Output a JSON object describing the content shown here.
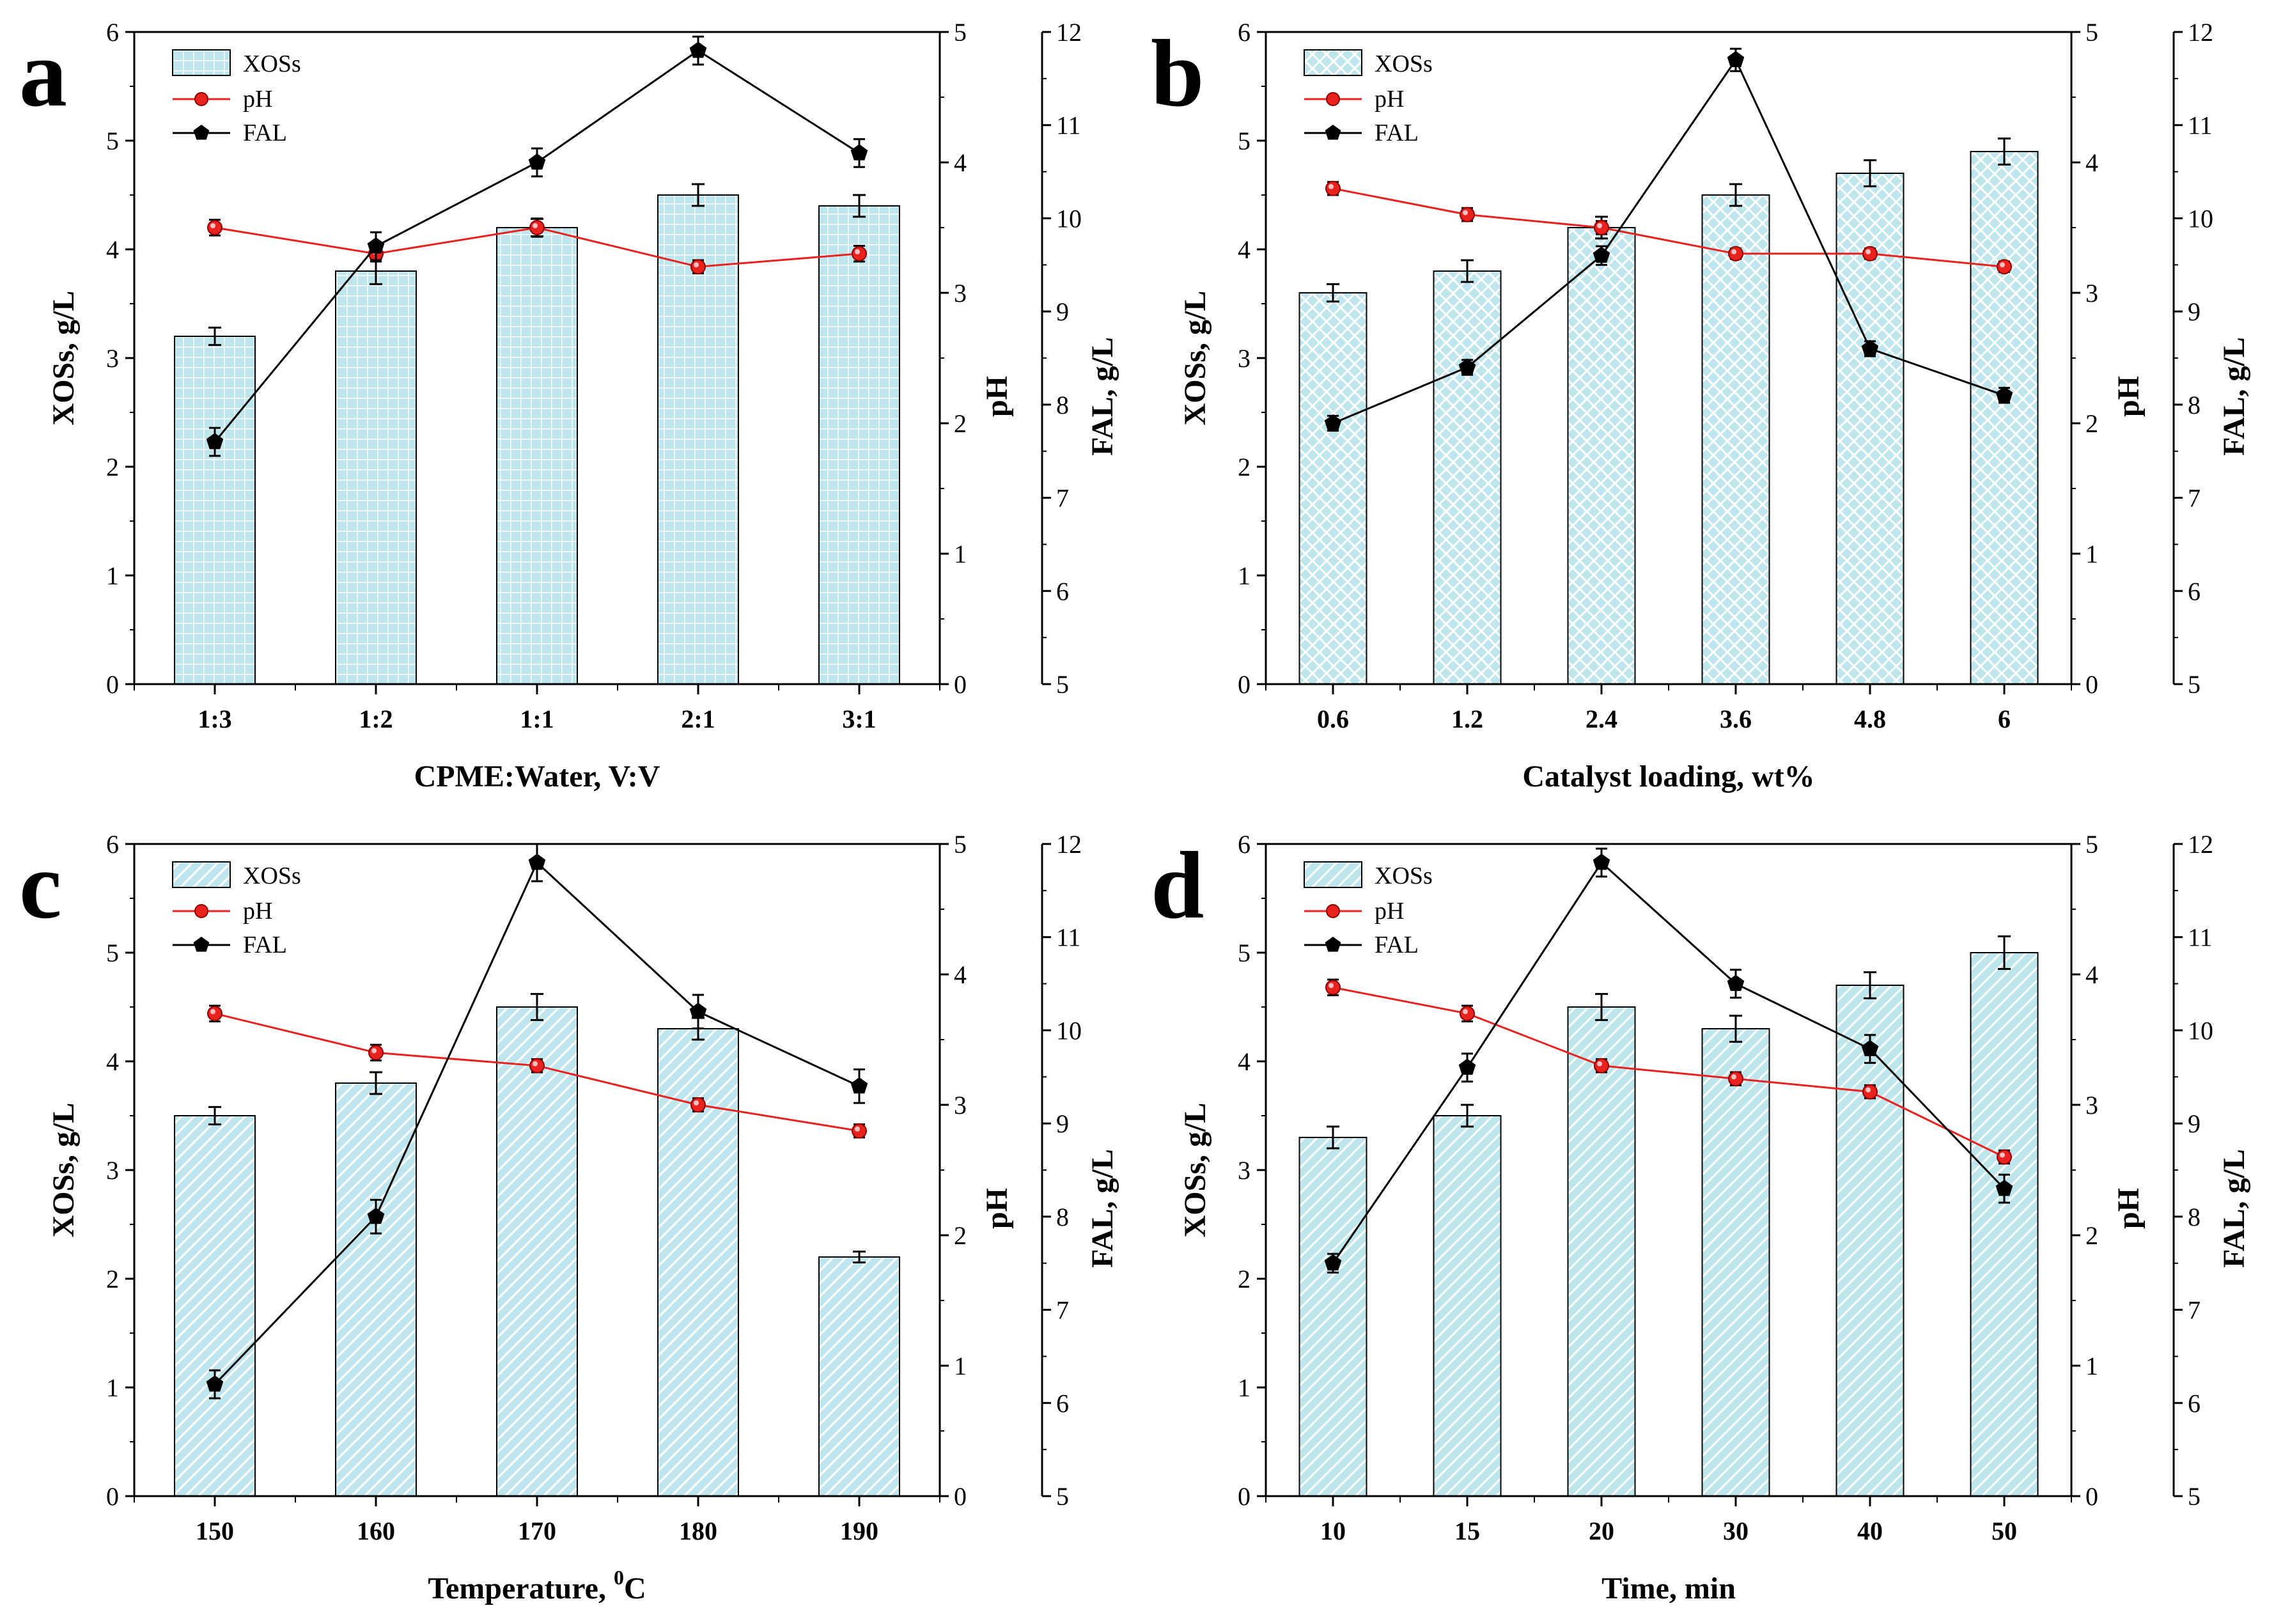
{
  "chart_data": [
    {
      "type": "bar",
      "panel": "a",
      "xlabel": "CPME:Water, V:V",
      "ylabel_left": "XOSs, g/L",
      "ylabel_right1": "pH",
      "ylabel_right2": "FAL, g/L",
      "categories": [
        "1:3",
        "1:2",
        "1:1",
        "2:1",
        "3:1"
      ],
      "ylim_left": [
        0,
        6
      ],
      "ylim_ph": [
        0,
        5
      ],
      "ylim_fal": [
        5,
        12
      ],
      "pattern": "grid",
      "series": [
        {
          "name": "XOSs",
          "kind": "bar",
          "axis": "left",
          "values": [
            3.2,
            3.8,
            4.2,
            4.5,
            4.4
          ],
          "errors": [
            0.08,
            0.12,
            0.08,
            0.1,
            0.1
          ]
        },
        {
          "name": "pH",
          "kind": "line",
          "axis": "ph",
          "color": "#e8221f",
          "values": [
            3.5,
            3.3,
            3.5,
            3.2,
            3.3
          ],
          "errors": [
            0.06,
            0.06,
            0.07,
            0.05,
            0.06
          ]
        },
        {
          "name": "FAL",
          "kind": "line",
          "axis": "fal",
          "color": "#000000",
          "values": [
            7.6,
            9.7,
            10.6,
            11.8,
            10.7
          ],
          "errors": [
            0.15,
            0.15,
            0.15,
            0.15,
            0.15
          ]
        }
      ]
    },
    {
      "type": "bar",
      "panel": "b",
      "xlabel": "Catalyst loading, wt%",
      "ylabel_left": "XOSs, g/L",
      "ylabel_right1": "pH",
      "ylabel_right2": "FAL, g/L",
      "categories": [
        "0.6",
        "1.2",
        "2.4",
        "3.6",
        "4.8",
        "6"
      ],
      "ylim_left": [
        0,
        6
      ],
      "ylim_ph": [
        0,
        5
      ],
      "ylim_fal": [
        5,
        12
      ],
      "pattern": "cross",
      "series": [
        {
          "name": "XOSs",
          "kind": "bar",
          "axis": "left",
          "values": [
            3.6,
            3.8,
            4.2,
            4.5,
            4.7,
            4.9
          ],
          "errors": [
            0.08,
            0.1,
            0.1,
            0.1,
            0.12,
            0.12
          ]
        },
        {
          "name": "pH",
          "kind": "line",
          "axis": "ph",
          "color": "#e8221f",
          "values": [
            3.8,
            3.6,
            3.5,
            3.3,
            3.3,
            3.2
          ],
          "errors": [
            0.05,
            0.05,
            0.05,
            0.04,
            0.04,
            0.04
          ]
        },
        {
          "name": "FAL",
          "kind": "line",
          "axis": "fal",
          "color": "#000000",
          "values": [
            7.8,
            8.4,
            9.6,
            11.7,
            8.6,
            8.1
          ],
          "errors": [
            0.08,
            0.08,
            0.1,
            0.12,
            0.08,
            0.08
          ]
        }
      ]
    },
    {
      "type": "bar",
      "panel": "c",
      "xlabel": "Temperature, ",
      "xlabel_unit": "C",
      "xlabel_sup": "0",
      "ylabel_left": "XOSs, g/L",
      "ylabel_right1": "pH",
      "ylabel_right2": "FAL, g/L",
      "categories": [
        "150",
        "160",
        "170",
        "180",
        "190"
      ],
      "ylim_left": [
        0,
        6
      ],
      "ylim_ph": [
        0,
        5
      ],
      "ylim_fal": [
        5,
        12
      ],
      "pattern": "diag",
      "series": [
        {
          "name": "XOSs",
          "kind": "bar",
          "axis": "left",
          "values": [
            3.5,
            3.8,
            4.5,
            4.3,
            2.2
          ],
          "errors": [
            0.08,
            0.1,
            0.12,
            0.1,
            0.05
          ]
        },
        {
          "name": "pH",
          "kind": "line",
          "axis": "ph",
          "color": "#e8221f",
          "values": [
            3.7,
            3.4,
            3.3,
            3.0,
            2.8
          ],
          "errors": [
            0.06,
            0.06,
            0.05,
            0.05,
            0.05
          ]
        },
        {
          "name": "FAL",
          "kind": "line",
          "axis": "fal",
          "color": "#000000",
          "values": [
            6.2,
            8.0,
            11.8,
            10.2,
            9.4
          ],
          "errors": [
            0.15,
            0.18,
            0.2,
            0.18,
            0.18
          ]
        }
      ]
    },
    {
      "type": "bar",
      "panel": "d",
      "xlabel": "Time, min",
      "ylabel_left": "XOSs, g/L",
      "ylabel_right1": "pH",
      "ylabel_right2": "FAL, g/L",
      "categories": [
        "10",
        "15",
        "20",
        "30",
        "40",
        "50"
      ],
      "ylim_left": [
        0,
        6
      ],
      "ylim_ph": [
        0,
        5
      ],
      "ylim_fal": [
        5,
        12
      ],
      "pattern": "diag",
      "series": [
        {
          "name": "XOSs",
          "kind": "bar",
          "axis": "left",
          "values": [
            3.3,
            3.5,
            4.5,
            4.3,
            4.7,
            5.0
          ],
          "errors": [
            0.1,
            0.1,
            0.12,
            0.12,
            0.12,
            0.15
          ]
        },
        {
          "name": "pH",
          "kind": "line",
          "axis": "ph",
          "color": "#e8221f",
          "values": [
            3.9,
            3.7,
            3.3,
            3.2,
            3.1,
            2.6
          ],
          "errors": [
            0.06,
            0.06,
            0.05,
            0.05,
            0.05,
            0.05
          ]
        },
        {
          "name": "FAL",
          "kind": "line",
          "axis": "fal",
          "color": "#000000",
          "values": [
            7.5,
            9.6,
            11.8,
            10.5,
            9.8,
            8.3
          ],
          "errors": [
            0.1,
            0.15,
            0.15,
            0.15,
            0.15,
            0.15
          ]
        }
      ]
    }
  ],
  "legend": {
    "xoss": "XOSs",
    "ph": "pH",
    "fal": "FAL"
  },
  "colors": {
    "bar_fill": "#bfe6ec",
    "bar_pattern": "#ffffff",
    "ph_line": "#e8221f",
    "fal_line": "#000000",
    "axis": "#000000"
  }
}
